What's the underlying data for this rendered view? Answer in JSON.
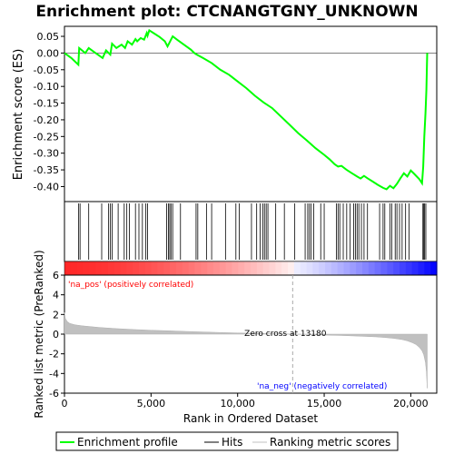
{
  "chart_data": {
    "type": "line",
    "title": "Enrichment plot: CTCNANGTGNY_UNKNOWN",
    "xlabel": "Rank in Ordered Dataset",
    "xlim": [
      0,
      21500
    ],
    "x_ticks": [
      {
        "v": 0,
        "label": "0"
      },
      {
        "v": 5000,
        "label": "5,000"
      },
      {
        "v": 10000,
        "label": "10,000"
      },
      {
        "v": 15000,
        "label": "15,000"
      },
      {
        "v": 20000,
        "label": "20,000"
      }
    ],
    "es_panel": {
      "ylabel": "Enrichment score (ES)",
      "ylim": [
        -0.445,
        0.08
      ],
      "y_ticks": [
        {
          "v": 0.05,
          "label": "0.05"
        },
        {
          "v": 0.0,
          "label": "0.00"
        },
        {
          "v": -0.05,
          "label": "-0.05"
        },
        {
          "v": -0.1,
          "label": "-0.10"
        },
        {
          "v": -0.15,
          "label": "-0.15"
        },
        {
          "v": -0.2,
          "label": "-0.20"
        },
        {
          "v": -0.25,
          "label": "-0.25"
        },
        {
          "v": -0.3,
          "label": "-0.30"
        },
        {
          "v": -0.35,
          "label": "-0.35"
        },
        {
          "v": -0.4,
          "label": "-0.40"
        }
      ],
      "grid": false,
      "series": [
        {
          "name": "Enrichment profile",
          "color": "#00ff00",
          "x": [
            0,
            400,
            800,
            850,
            1200,
            1400,
            1800,
            2200,
            2400,
            2650,
            2750,
            3000,
            3300,
            3500,
            3650,
            3900,
            4100,
            4200,
            4400,
            4600,
            4750,
            4800,
            4900,
            5200,
            5500,
            5800,
            5950,
            6050,
            6150,
            6250,
            6500,
            6900,
            7300,
            7500,
            7650,
            8000,
            8500,
            9000,
            9500,
            10000,
            10500,
            11000,
            11500,
            12000,
            12500,
            13000,
            13500,
            14000,
            14500,
            15000,
            15300,
            15600,
            15800,
            16000,
            16300,
            16600,
            16900,
            17100,
            17300,
            17500,
            17800,
            18100,
            18400,
            18600,
            18800,
            19000,
            19200,
            19400,
            19600,
            19800,
            20000,
            20200,
            20500,
            20650,
            20720,
            20780,
            20850,
            20900,
            20950
          ],
          "y": [
            0.0,
            -0.015,
            -0.035,
            0.015,
            0.0,
            0.015,
            0.0,
            -0.015,
            0.008,
            -0.005,
            0.028,
            0.015,
            0.025,
            0.015,
            0.035,
            0.025,
            0.042,
            0.035,
            0.045,
            0.04,
            0.06,
            0.052,
            0.068,
            0.058,
            0.048,
            0.035,
            0.02,
            0.03,
            0.04,
            0.05,
            0.04,
            0.025,
            0.01,
            0.0,
            -0.005,
            -0.015,
            -0.03,
            -0.05,
            -0.065,
            -0.085,
            -0.105,
            -0.128,
            -0.148,
            -0.165,
            -0.19,
            -0.215,
            -0.24,
            -0.262,
            -0.285,
            -0.305,
            -0.318,
            -0.333,
            -0.34,
            -0.338,
            -0.35,
            -0.36,
            -0.37,
            -0.376,
            -0.368,
            -0.375,
            -0.385,
            -0.395,
            -0.404,
            -0.408,
            -0.398,
            -0.405,
            -0.392,
            -0.375,
            -0.36,
            -0.37,
            -0.352,
            -0.362,
            -0.378,
            -0.39,
            -0.34,
            -0.25,
            -0.18,
            -0.11,
            0.0
          ]
        }
      ]
    },
    "hits_panel": {
      "legend_name": "Hits",
      "hit_positions": [
        820,
        900,
        1400,
        2150,
        2550,
        2650,
        2750,
        3100,
        3450,
        3600,
        3750,
        4100,
        4300,
        4500,
        4700,
        4800,
        5900,
        6000,
        6080,
        6150,
        6250,
        6700,
        7600,
        7700,
        8200,
        8500,
        9300,
        9900,
        10100,
        10800,
        11100,
        11300,
        11450,
        11550,
        11650,
        11750,
        12200,
        12700,
        13300,
        13900,
        14050,
        14150,
        14250,
        14400,
        14800,
        15000,
        15700,
        15800,
        15900,
        16100,
        16300,
        16500,
        16700,
        16800,
        16900,
        17000,
        17150,
        17300,
        17500,
        18200,
        18400,
        18500,
        18800,
        18900,
        19100,
        19200,
        19350,
        19500,
        19700,
        19900,
        20700,
        20750,
        20800,
        20870
      ]
    },
    "ranked_panel": {
      "ylabel": "Ranked list metric (PreRanked)",
      "ylim": [
        -6,
        6
      ],
      "y_ticks": [
        {
          "v": 6,
          "label": "6"
        },
        {
          "v": 4,
          "label": "4"
        },
        {
          "v": 2,
          "label": "2"
        },
        {
          "v": 0,
          "label": "0"
        },
        {
          "v": -2,
          "label": "-2"
        },
        {
          "v": -4,
          "label": "-4"
        },
        {
          "v": -6,
          "label": "-6"
        }
      ],
      "series": [
        {
          "name": "Ranking metric scores",
          "color": "#c0c0c0",
          "x": [
            0,
            50,
            150,
            300,
            600,
            1000,
            2000,
            3000,
            4000,
            5000,
            6000,
            7000,
            8000,
            9000,
            10000,
            11000,
            12000,
            13180,
            14000,
            15000,
            16000,
            17000,
            18000,
            18500,
            19000,
            19500,
            19800,
            20100,
            20300,
            20500,
            20650,
            20750,
            20850,
            20900,
            20950
          ],
          "y": [
            2.2,
            1.6,
            1.3,
            1.1,
            0.95,
            0.85,
            0.68,
            0.56,
            0.47,
            0.4,
            0.34,
            0.28,
            0.22,
            0.17,
            0.12,
            0.08,
            0.04,
            0.0,
            -0.04,
            -0.09,
            -0.14,
            -0.2,
            -0.28,
            -0.34,
            -0.42,
            -0.55,
            -0.68,
            -0.88,
            -1.05,
            -1.35,
            -1.7,
            -2.1,
            -2.9,
            -3.8,
            -5.5
          ]
        }
      ],
      "zero_cross_label": "Zero cross at 13180",
      "zero_cross": 13180,
      "pos_label": "'na_pos' (positively correlated)",
      "neg_label": "'na_neg' (negatively correlated)",
      "pos_color": "#ff0000",
      "neg_color": "#0000ff"
    },
    "legend": {
      "placement": "bottom",
      "entries": [
        {
          "label": "Enrichment profile",
          "color": "#00ff00"
        },
        {
          "label": "Hits",
          "color": "#000000"
        },
        {
          "label": "Ranking metric scores",
          "color": "#c0c0c0"
        }
      ]
    }
  }
}
